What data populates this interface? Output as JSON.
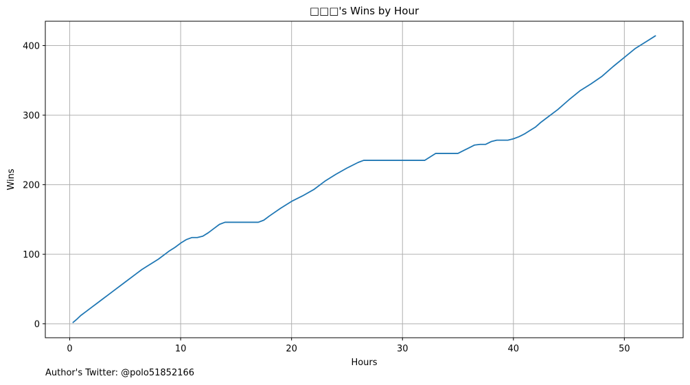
{
  "chart_data": {
    "type": "line",
    "title": "□□□'s Wins by Hour",
    "xlabel": "Hours",
    "ylabel": "Wins",
    "xlim": [
      -2.2,
      55.3
    ],
    "ylim": [
      -20,
      435
    ],
    "xticks": [
      0,
      10,
      20,
      30,
      40,
      50
    ],
    "yticks": [
      0,
      100,
      200,
      300,
      400
    ],
    "grid": true,
    "line_color": "#1f77b4",
    "series": [
      {
        "name": "Wins",
        "x": [
          0.3,
          0.6,
          1.0,
          1.5,
          2.0,
          2.5,
          3.0,
          3.5,
          4.0,
          5.0,
          6.0,
          6.5,
          7.0,
          8.0,
          9.0,
          9.5,
          10.0,
          10.5,
          11.0,
          11.5,
          12.0,
          12.5,
          13.0,
          13.5,
          14.0,
          15.0,
          16.0,
          17.0,
          17.5,
          18.0,
          19.0,
          20.0,
          21.0,
          22.0,
          23.0,
          24.0,
          25.0,
          26.0,
          26.5,
          27.0,
          28.0,
          29.0,
          30.0,
          31.0,
          32.0,
          32.5,
          33.0,
          34.0,
          35.0,
          35.5,
          36.0,
          36.5,
          37.0,
          37.5,
          38.0,
          38.5,
          39.0,
          39.5,
          40.0,
          40.5,
          41.0,
          41.5,
          42.0,
          42.5,
          43.0,
          44.0,
          45.0,
          46.0,
          47.0,
          48.0,
          49.0,
          50.0,
          51.0,
          52.0,
          52.8
        ],
        "values": [
          2,
          6,
          12,
          18,
          24,
          30,
          36,
          42,
          48,
          60,
          72,
          78,
          83,
          93,
          105,
          110,
          116,
          121,
          124,
          124,
          126,
          131,
          137,
          143,
          146,
          146,
          146,
          146,
          149,
          155,
          166,
          176,
          184,
          193,
          205,
          215,
          224,
          232,
          235,
          235,
          235,
          235,
          235,
          235,
          235,
          240,
          245,
          245,
          245,
          249,
          253,
          257,
          258,
          258,
          262,
          264,
          264,
          264,
          266,
          269,
          273,
          278,
          283,
          290,
          296,
          308,
          322,
          335,
          345,
          356,
          370,
          383,
          396,
          406,
          414
        ]
      }
    ]
  },
  "footer": {
    "author_text": "Author's Twitter: @polo51852166"
  }
}
